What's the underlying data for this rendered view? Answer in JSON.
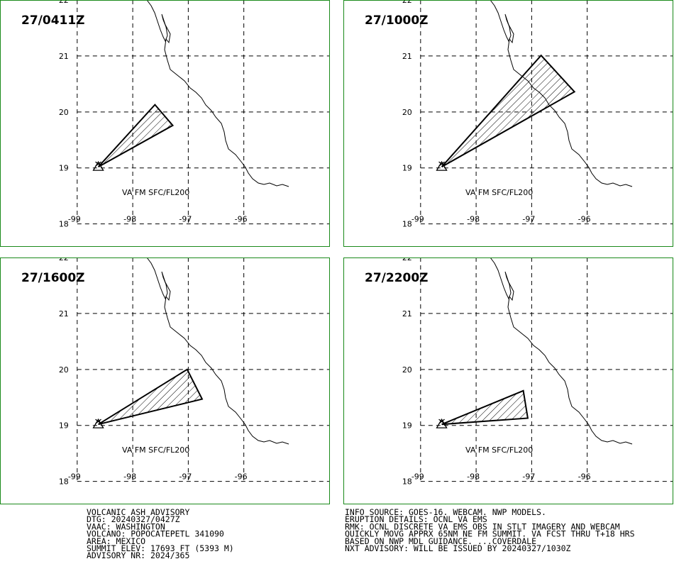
{
  "map": {
    "xlim": [
      -100.39,
      -94.45
    ],
    "ylim": [
      17.59,
      22.0
    ],
    "xticks": [
      -99,
      -98,
      -97,
      -96
    ],
    "yticks": [
      18,
      19,
      20,
      21,
      22
    ]
  },
  "panels": [
    {
      "time": "27/0411Z",
      "label": "VA FM SFC/FL200",
      "volcano": {
        "lon": -98.62,
        "lat": 19.02
      },
      "polygon": {
        "lon": [
          -98.62,
          -97.6,
          -97.28,
          -98.62
        ],
        "lat": [
          19.02,
          20.13,
          19.76,
          19.02
        ]
      }
    },
    {
      "time": "27/1000Z",
      "label": "VA FM SFC/FL200",
      "volcano": {
        "lon": -98.62,
        "lat": 19.02
      },
      "polygon": {
        "lon": [
          -98.62,
          -96.83,
          -96.23,
          -98.62
        ],
        "lat": [
          19.02,
          21.01,
          20.36,
          19.02
        ]
      }
    },
    {
      "time": "27/1600Z",
      "label": "VA FM SFC/FL200",
      "volcano": {
        "lon": -98.62,
        "lat": 19.02
      },
      "polygon": {
        "lon": [
          -98.62,
          -97.02,
          -96.75,
          -98.62
        ],
        "lat": [
          19.02,
          20.0,
          19.47,
          19.02
        ]
      }
    },
    {
      "time": "27/2200Z",
      "label": "VA FM SFC/FL200",
      "volcano": {
        "lon": -98.62,
        "lat": 19.02
      },
      "polygon": {
        "lon": [
          -98.62,
          -97.15,
          -97.07,
          -98.62
        ],
        "lat": [
          19.02,
          19.62,
          19.13,
          19.02
        ]
      }
    }
  ],
  "advisory": {
    "left": [
      "VOLCANIC ASH ADVISORY",
      "DTG: 20240327/0427Z",
      "VAAC: WASHINGTON",
      "VOLCANO: POPOCATEPETL 341090",
      "AREA: MEXICO",
      "SUMMIT ELEV: 17693 FT (5393 M)",
      "ADVISORY NR: 2024/365"
    ],
    "right": [
      "INFO SOURCE: GOES-16. WEBCAM. NWP MODELS.",
      "ERUPTION DETAILS: OCNL VA EMS",
      "RMK: OCNL DISCRETE VA EMS OBS IN STLT IMAGERY AND WEBCAM",
      "QUICKLY MOVG APPRX 65NM NE FM SUMMIT. VA FCST THRU T+18 HRS",
      "BASED ON NWP MDL GUIDANCE. ...COVERDALE",
      "NXT ADVISORY: WILL BE ISSUED BY 20240327/1030Z"
    ]
  }
}
